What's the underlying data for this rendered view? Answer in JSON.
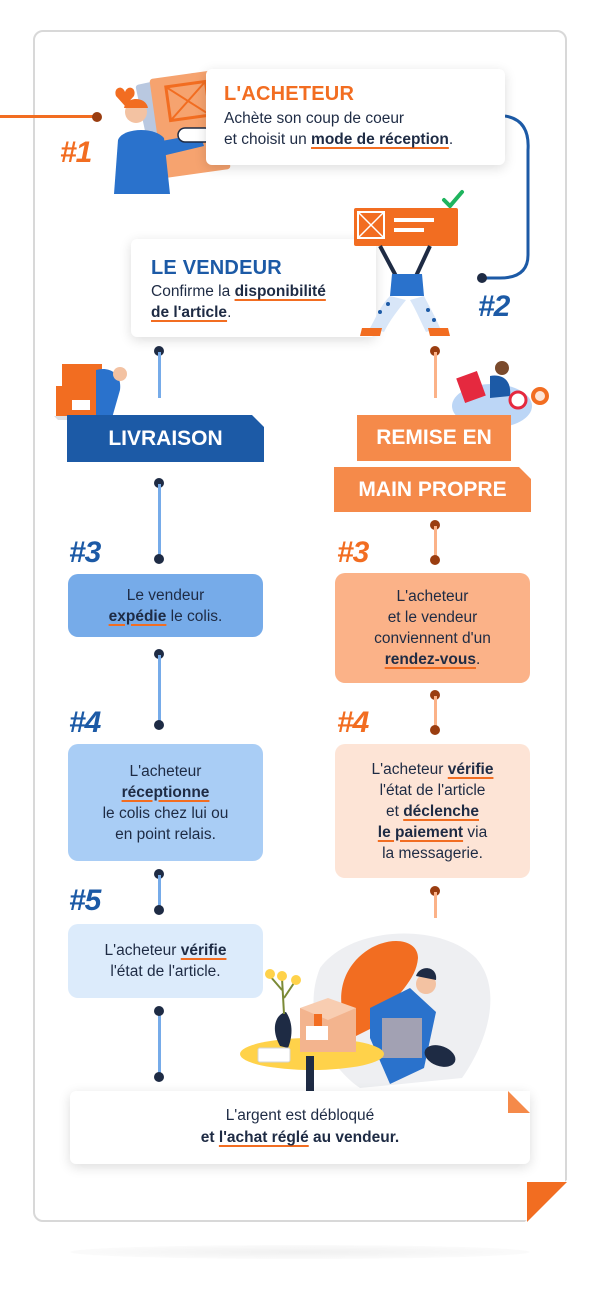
{
  "step1": {
    "number": "#1",
    "title": "L'ACHETEUR",
    "line1": "Achète son coup de coeur",
    "line2_pre": "et choisit un ",
    "line2_em": "mode de réception",
    "line2_post": "."
  },
  "step2": {
    "number": "#2",
    "title": "LE VENDEUR",
    "line1_pre": "Confirme la ",
    "line1_em": "disponibilité",
    "line2_em": "de l'article",
    "line2_post": "."
  },
  "banners": {
    "livraison": "LIVRAISON",
    "remise_line1": "REMISE EN",
    "remise_line2": "MAIN PROPRE"
  },
  "left": {
    "s3": {
      "number": "#3",
      "line1": "Le vendeur",
      "em": "expédie",
      "post": " le colis."
    },
    "s4": {
      "number": "#4",
      "line1": "L'acheteur",
      "em": "réceptionne",
      "line3": "le colis chez lui ou",
      "line4": "en point relais."
    },
    "s5": {
      "number": "#5",
      "pre": "L'acheteur ",
      "em": "vérifie",
      "line2": "l'état de l'article."
    }
  },
  "right": {
    "s3": {
      "number": "#3",
      "line1": "L'acheteur",
      "line2": "et le vendeur",
      "line3": "conviennent d'un",
      "em": "rendez-vous",
      "post": "."
    },
    "s4": {
      "number": "#4",
      "pre": "L'acheteur ",
      "em1": "vérifie",
      "line2": "l'état de l'article",
      "line3_pre": "et ",
      "em2": "déclenche",
      "em3": "le paiement",
      "line4_post": " via",
      "line5": "la messagerie."
    }
  },
  "final": {
    "line1": "L'argent est débloqué",
    "line2_pre": "et ",
    "em": "l'achat réglé",
    "line2_post": " au vendeur."
  },
  "colors": {
    "orange": "#f26d21",
    "navy": "#1c5aa6",
    "dark": "#1e2b44",
    "blue_box": "#76abe9",
    "blue_box_light": "#a9cdf5",
    "blue_box_lighter": "#dcebfb",
    "peach_box": "#fbb288",
    "peach_box_light": "#fde4d6"
  }
}
